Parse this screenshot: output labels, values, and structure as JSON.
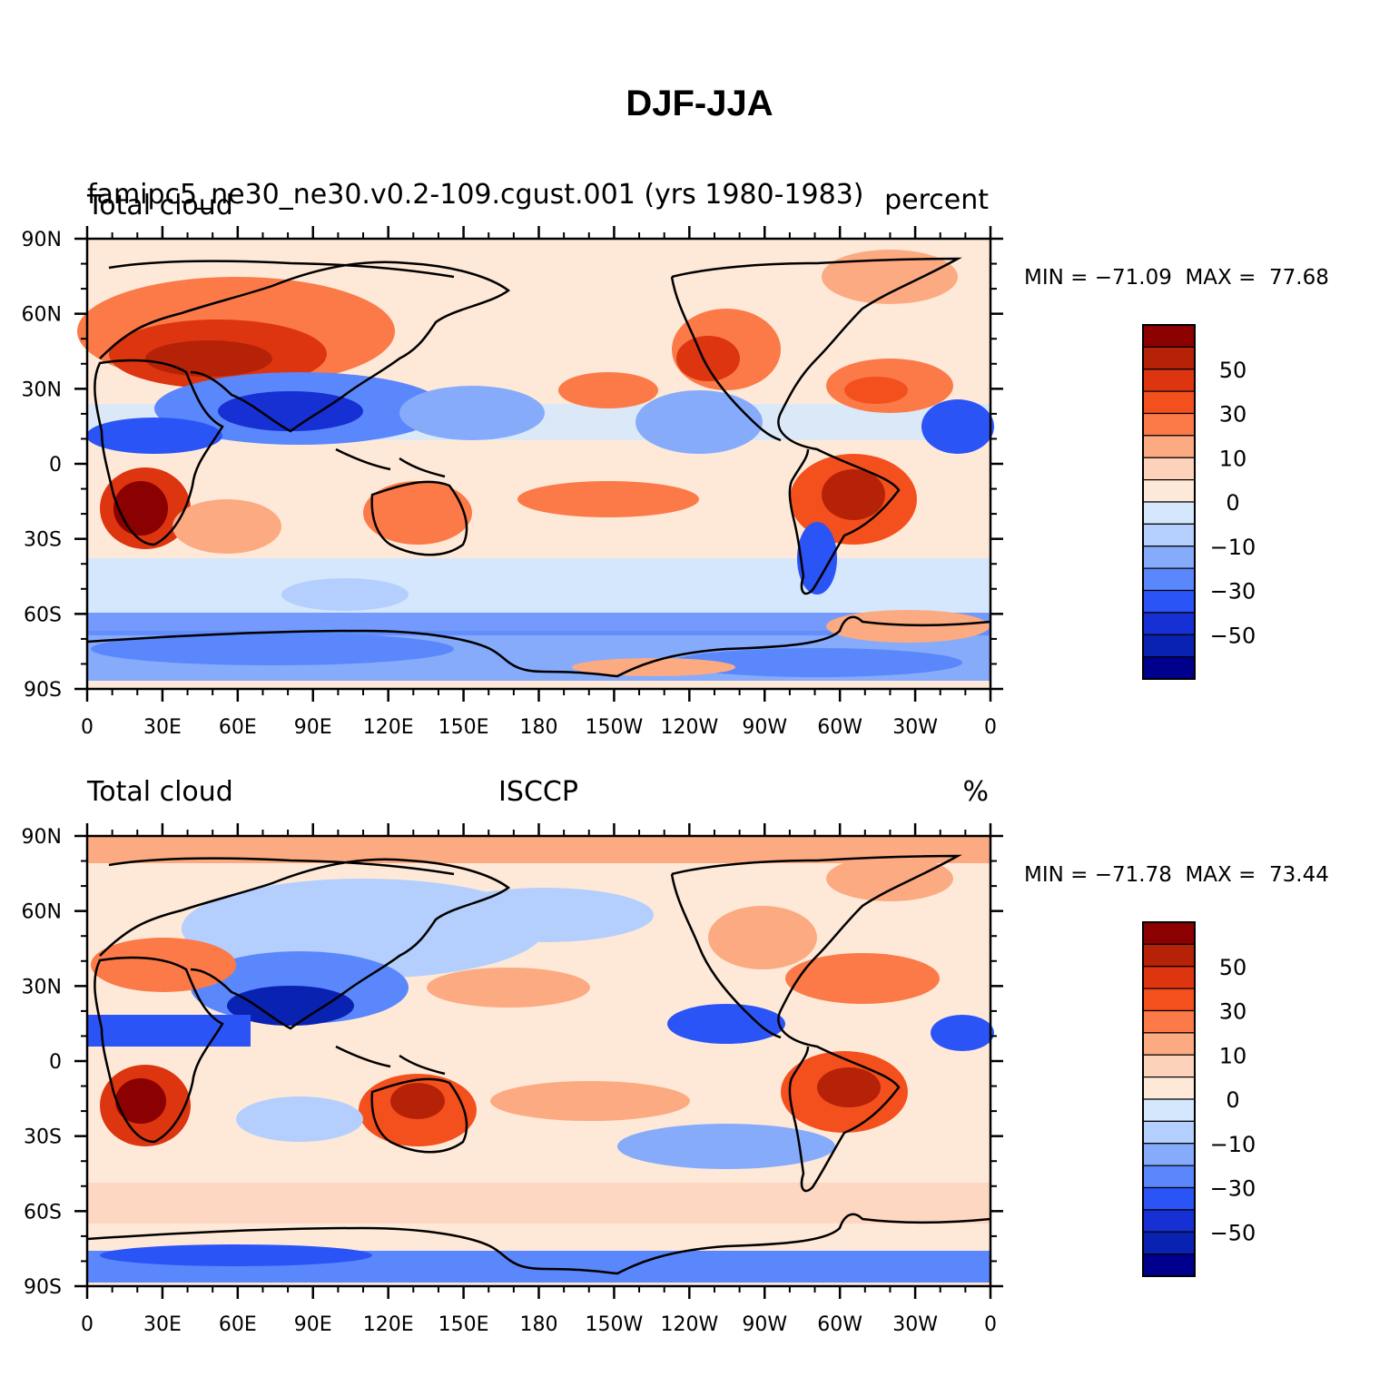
{
  "title": "DJF-JJA",
  "panels": [
    {
      "left_label": "Total cloud",
      "case_name": "famipc5_ne30_ne30.v0.2-109.cgust.001 (yrs 1980-1983)",
      "center_label": "",
      "right_label": "percent",
      "min_max": "MIN = −71.09  MAX =  77.68"
    },
    {
      "left_label": "Total cloud",
      "case_name": "",
      "center_label": "ISCCP",
      "right_label": "%",
      "min_max": "MIN = −71.78  MAX =  73.44"
    }
  ],
  "axes": {
    "lon_ticks": [
      "0",
      "30E",
      "60E",
      "90E",
      "120E",
      "150E",
      "180",
      "150W",
      "120W",
      "90W",
      "60W",
      "30W",
      "0"
    ],
    "lat_ticks": [
      "90N",
      "60N",
      "30N",
      "0",
      "30S",
      "60S",
      "90S"
    ]
  },
  "colorbar": {
    "labels": [
      "50",
      "30",
      "10",
      "0",
      "−10",
      "−30",
      "−50"
    ],
    "colors": [
      "#8b0000",
      "#b52208",
      "#dc3510",
      "#f4501e",
      "#fb7a48",
      "#fcaa82",
      "#fdd2bb",
      "#fee9d8",
      "#d4e7fd",
      "#b4cffd",
      "#87abfb",
      "#5a87fb",
      "#2b54f6",
      "#1630d4",
      "#0a22b2",
      "#00008c"
    ]
  },
  "icons": [
    "coastline-map"
  ]
}
